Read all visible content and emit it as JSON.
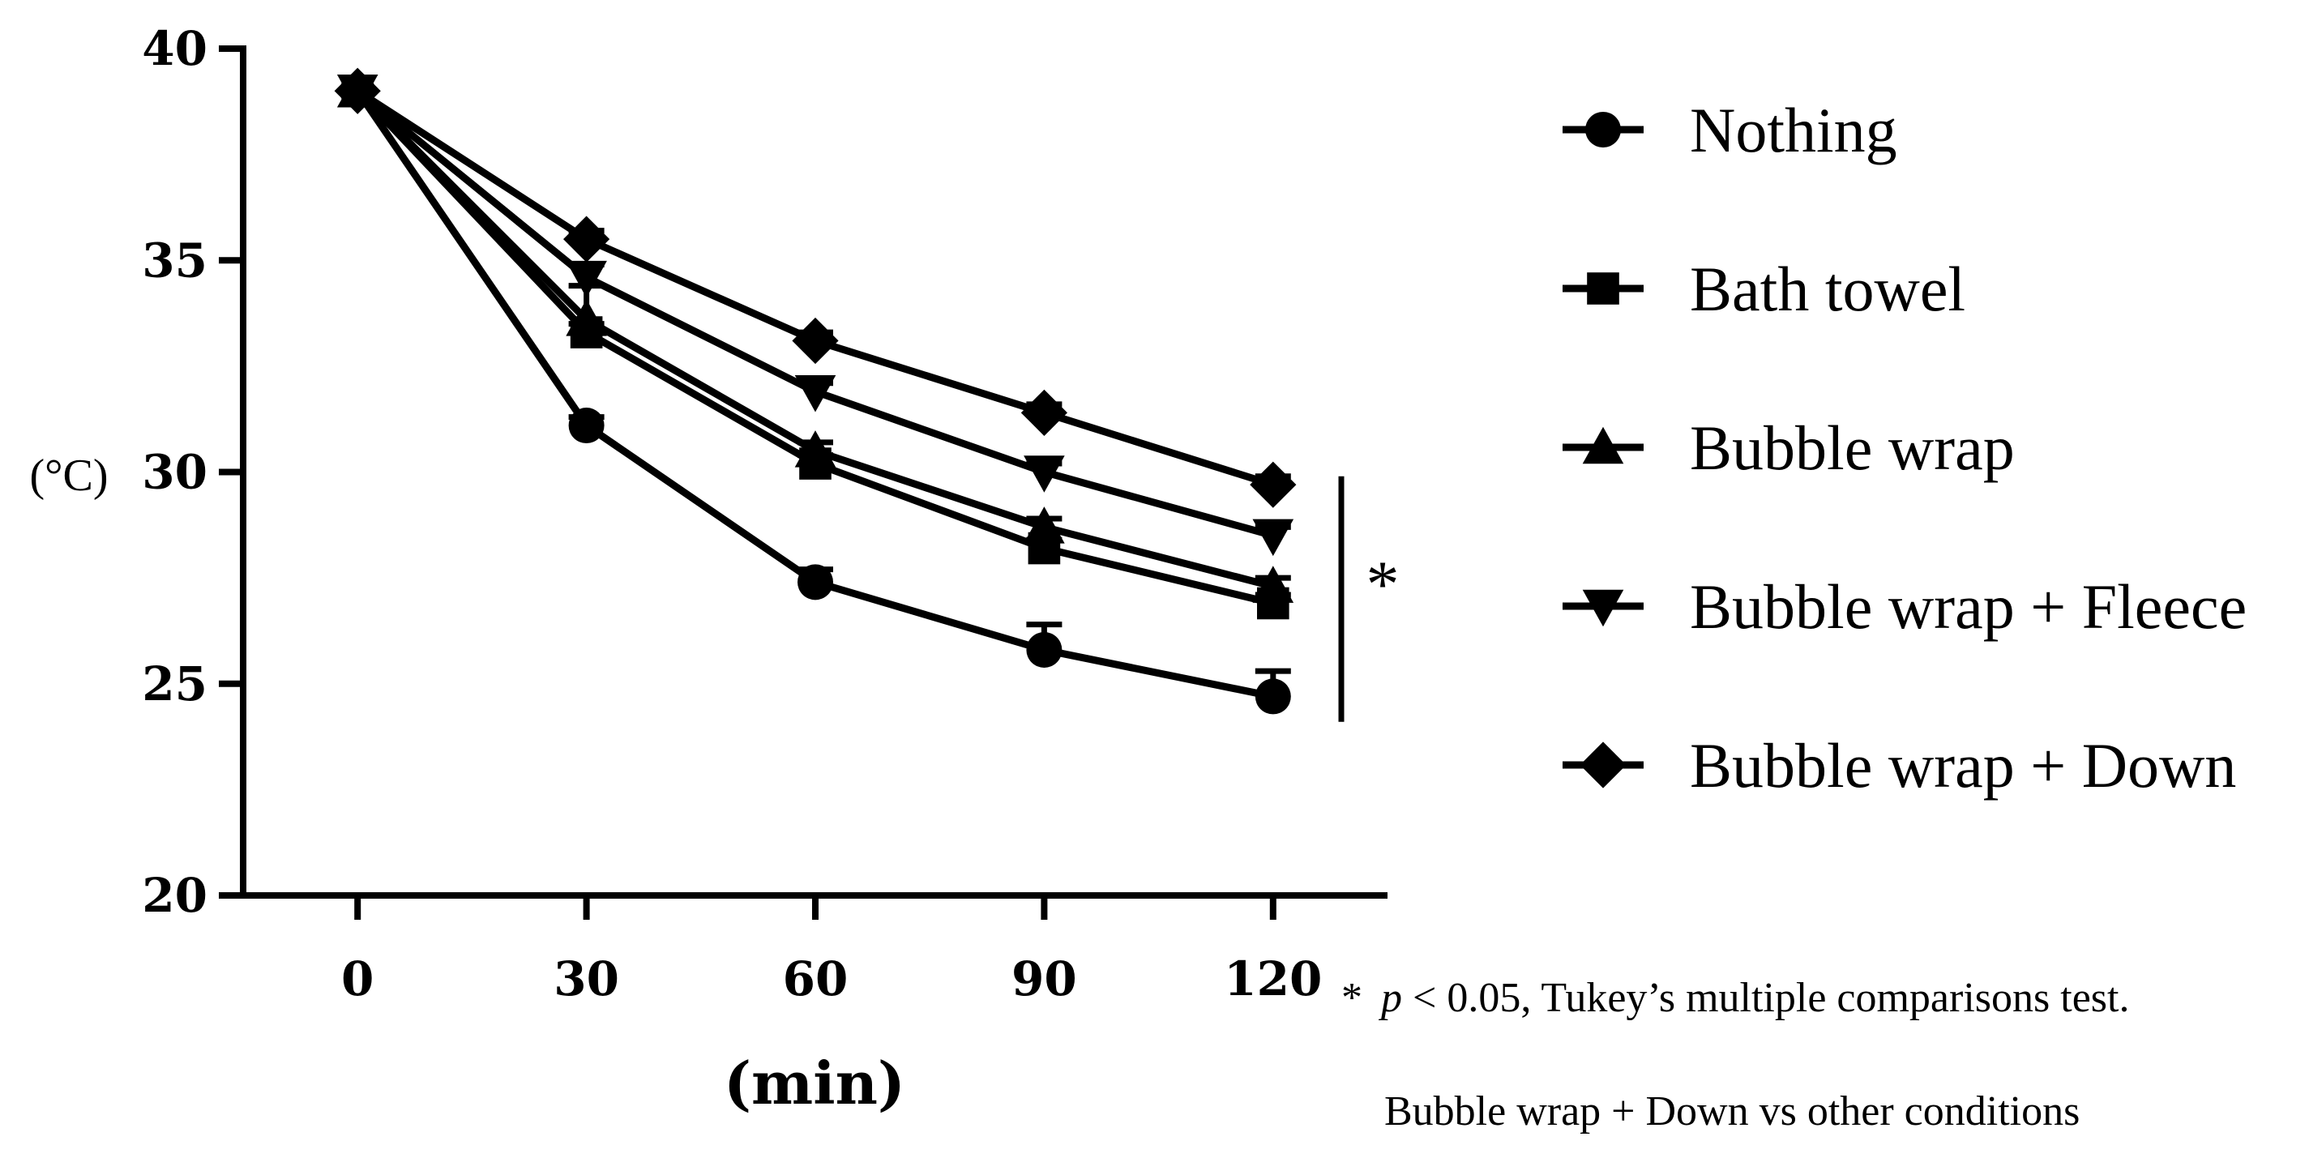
{
  "chart_data": {
    "type": "line",
    "title": "",
    "xlabel": "(min)",
    "ylabel": "(°C)",
    "x": [
      0,
      30,
      60,
      90,
      120
    ],
    "x_tick_labels": [
      "0",
      "30",
      "60",
      "90",
      "120"
    ],
    "y_tick_labels": [
      "20",
      "25",
      "30",
      "35",
      "40"
    ],
    "xlim": [
      -15,
      135
    ],
    "ylim": [
      20,
      40
    ],
    "grid": false,
    "legend_position": "right",
    "series": [
      {
        "name": "Nothing",
        "marker": "circle",
        "values": [
          39.0,
          31.1,
          27.4,
          25.8,
          24.7
        ],
        "err_plus": [
          0.1,
          0.2,
          0.3,
          0.6,
          0.6
        ]
      },
      {
        "name": "Bath towel",
        "marker": "square",
        "values": [
          39.0,
          33.3,
          30.2,
          28.2,
          26.9
        ],
        "err_plus": [
          0.1,
          0.2,
          0.2,
          0.2,
          0.2
        ]
      },
      {
        "name": "Bubble wrap",
        "marker": "triangle-up",
        "values": [
          39.0,
          33.6,
          30.5,
          28.7,
          27.3
        ],
        "err_plus": [
          0.1,
          0.8,
          0.2,
          0.2,
          0.2
        ]
      },
      {
        "name": "Bubble wrap + Fleece",
        "marker": "triangle-down",
        "values": [
          39.0,
          34.6,
          31.9,
          30.0,
          28.5
        ],
        "err_plus": [
          0.1,
          0.3,
          0.2,
          0.2,
          0.2
        ]
      },
      {
        "name": "Bubble wrap + Down",
        "marker": "diamond",
        "values": [
          39.0,
          35.5,
          33.1,
          31.4,
          29.7
        ],
        "err_plus": [
          0.1,
          0.2,
          0.2,
          0.2,
          0.2
        ]
      }
    ],
    "significance": {
      "symbol": "*",
      "from_value": 24.1,
      "to_value": 29.9
    },
    "annotations": {
      "line1_star": "*",
      "line1_p": "p",
      "line1_rest": " < 0.05, Tukey’s multiple comparisons test.",
      "line2": "Bubble wrap + Down vs other conditions"
    }
  }
}
